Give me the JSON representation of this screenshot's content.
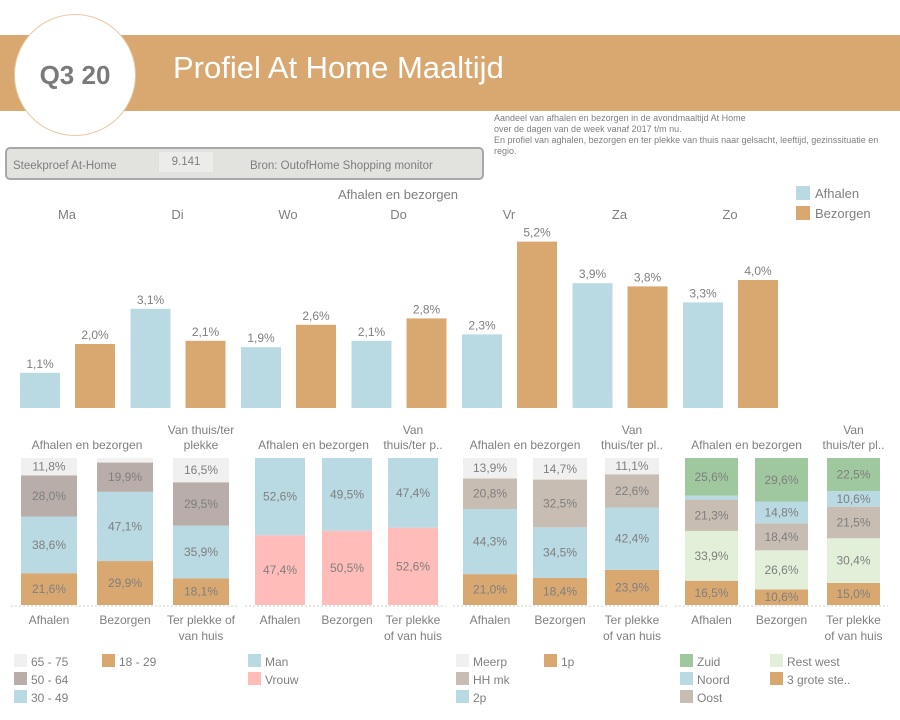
{
  "header": {
    "badge": "Q3 20",
    "title": "Profiel At Home Maaltijd",
    "description": [
      "Aandeel van afhalen en bezorgen in de avondmaaltijd At Home",
      "over de dagen van de week vanaf 2017 t/m nu.",
      "En profiel van aghalen, bezorgen en ter plekke van thuis naar gelsacht, leeftijd, gezinssituatie en",
      "regio."
    ]
  },
  "info": {
    "label": "Steekproef At-Home",
    "sample": "9.141",
    "source": "Bron: OutofHome Shopping monitor"
  },
  "colors": {
    "banner": "#d9a871",
    "afhalen": "#b9d9e3",
    "bezorgen": "#d9a871"
  },
  "chart_data": [
    {
      "type": "bar",
      "title": "Afhalen en bezorgen",
      "categories": [
        "Ma",
        "Di",
        "Wo",
        "Do",
        "Vr",
        "Za",
        "Zo"
      ],
      "series": [
        {
          "name": "Afhalen",
          "color": "#b9d9e3",
          "values": [
            1.1,
            3.1,
            1.9,
            2.1,
            2.3,
            3.9,
            3.3
          ],
          "labels": [
            "1,1%",
            "3,1%",
            "1,9%",
            "2,1%",
            "2,3%",
            "3,9%",
            "3,3%"
          ]
        },
        {
          "name": "Bezorgen",
          "color": "#d9a871",
          "values": [
            2.0,
            2.1,
            2.6,
            2.8,
            5.2,
            3.8,
            4.0
          ],
          "labels": [
            "2,0%",
            "2,1%",
            "2,6%",
            "2,8%",
            "5,2%",
            "3,8%",
            "4,0%"
          ]
        }
      ],
      "legend": "top-right",
      "unit": "%"
    },
    {
      "type": "stacked-bar",
      "headings": [
        "Afhalen en bezorgen",
        "Van thuis/ter plekke"
      ],
      "categories": [
        "Afhalen",
        "Bezorgen",
        "Ter plekke of van huis"
      ],
      "series": [
        {
          "name": "18 - 29",
          "color": "#d9a871",
          "values": [
            21.6,
            29.9,
            18.1
          ],
          "labels": [
            "21,6%",
            "29,9%",
            "18,1%"
          ]
        },
        {
          "name": "30 - 49",
          "color": "#b9d9e3",
          "values": [
            38.6,
            47.1,
            35.9
          ],
          "labels": [
            "38,6%",
            "47,1%",
            "35,9%"
          ]
        },
        {
          "name": "50 - 64",
          "color": "#b8ada8",
          "values": [
            28.0,
            19.9,
            29.5
          ],
          "labels": [
            "28,0%",
            "19,9%",
            "29,5%"
          ]
        },
        {
          "name": "65 - 75",
          "color": "#f0f0f0",
          "values": [
            11.8,
            3.1,
            16.5
          ],
          "labels": [
            "11,8%",
            "",
            "16,5%"
          ]
        }
      ],
      "legend_order": [
        "65 - 75",
        "18 - 29",
        "50 - 64",
        "30 - 49"
      ]
    },
    {
      "type": "stacked-bar",
      "headings": [
        "Afhalen en bezorgen",
        "Van thuis/ter p.."
      ],
      "categories": [
        "Afhalen",
        "Bezorgen",
        "Ter plekke of van huis"
      ],
      "series": [
        {
          "name": "Vrouw",
          "color": "#ffbcb8",
          "values": [
            47.4,
            50.5,
            52.6
          ],
          "labels": [
            "47,4%",
            "50,5%",
            "52,6%"
          ]
        },
        {
          "name": "Man",
          "color": "#b9d9e3",
          "values": [
            52.6,
            49.5,
            47.4
          ],
          "labels": [
            "52,6%",
            "49,5%",
            "47,4%"
          ]
        }
      ],
      "legend_order": [
        "Man",
        "Vrouw"
      ]
    },
    {
      "type": "stacked-bar",
      "headings": [
        "Afhalen en bezorgen",
        "Van thuis/ter pl.."
      ],
      "categories": [
        "Afhalen",
        "Bezorgen",
        "Ter plekke of van huis"
      ],
      "series": [
        {
          "name": "1p",
          "color": "#d9a871",
          "values": [
            21.0,
            18.4,
            23.9
          ],
          "labels": [
            "21,0%",
            "18,4%",
            "23,9%"
          ]
        },
        {
          "name": "2p",
          "color": "#b9d9e3",
          "values": [
            44.3,
            34.5,
            42.4
          ],
          "labels": [
            "44,3%",
            "34,5%",
            "42,4%"
          ]
        },
        {
          "name": "HH mk",
          "color": "#c7bdb2",
          "values": [
            20.8,
            32.5,
            22.6
          ],
          "labels": [
            "20,8%",
            "32,5%",
            "22,6%"
          ]
        },
        {
          "name": "Meerp",
          "color": "#f0f0f0",
          "values": [
            13.9,
            14.7,
            11.1
          ],
          "labels": [
            "13,9%",
            "14,7%",
            "11,1%"
          ]
        }
      ],
      "legend_order": [
        "Meerp",
        "1p",
        "HH mk",
        "2p"
      ]
    },
    {
      "type": "stacked-bar",
      "headings": [
        "Afhalen en bezorgen",
        "Van thuis/ter pl.."
      ],
      "categories": [
        "Afhalen",
        "Bezorgen",
        "Ter plekke of van huis"
      ],
      "series": [
        {
          "name": "3 grote ste..",
          "color": "#d9a871",
          "values": [
            16.5,
            10.6,
            15.0
          ],
          "labels": [
            "16,5%",
            "10,6%",
            "15,0%"
          ]
        },
        {
          "name": "Rest west",
          "color": "#e2f0da",
          "values": [
            33.9,
            26.6,
            30.4
          ],
          "labels": [
            "33,9%",
            "26,6%",
            "30,4%"
          ]
        },
        {
          "name": "Oost",
          "color": "#c7bdb2",
          "values": [
            21.3,
            18.4,
            21.5
          ],
          "labels": [
            "21,3%",
            "18,4%",
            "21,5%"
          ]
        },
        {
          "name": "Noord",
          "color": "#b9d9e3",
          "values": [
            2.7,
            14.8,
            10.6
          ],
          "labels": [
            "",
            "14,8%",
            "10,6%"
          ]
        },
        {
          "name": "Zuid",
          "color": "#a0c89e",
          "values": [
            25.6,
            29.6,
            22.5
          ],
          "labels": [
            "25,6%",
            "29,6%",
            "22,5%"
          ]
        }
      ],
      "legend_order": [
        "Zuid",
        "Rest west",
        "Noord",
        "3 grote ste..",
        "Oost"
      ]
    }
  ]
}
